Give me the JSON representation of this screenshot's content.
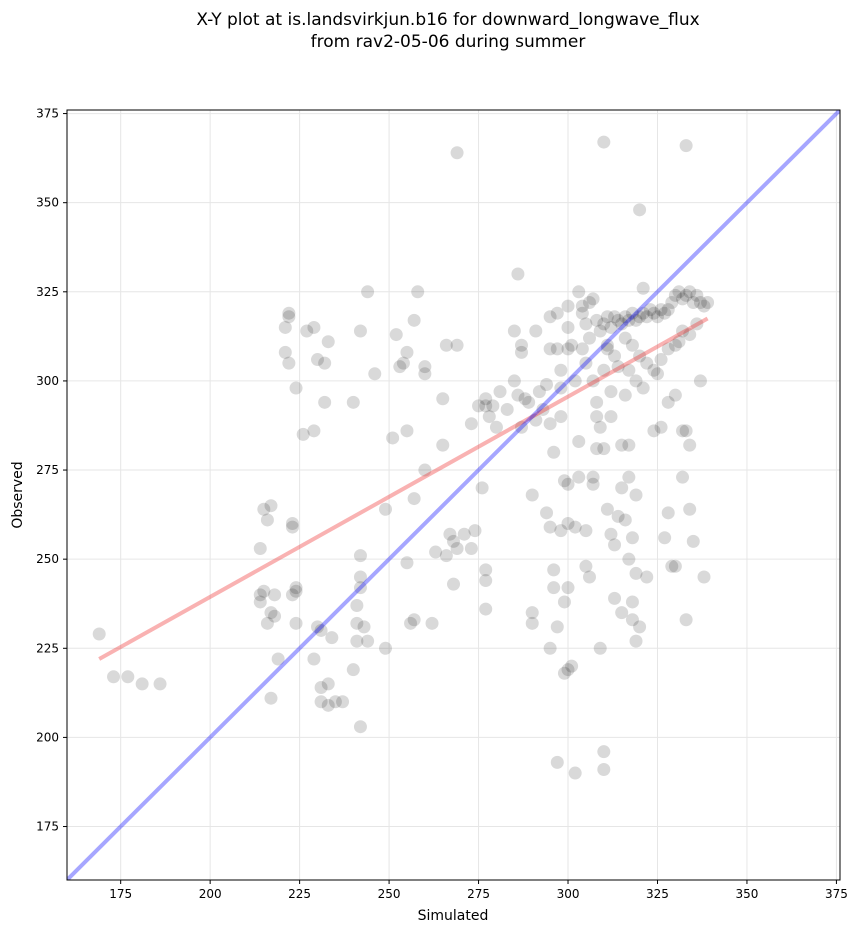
{
  "chart_data": {
    "type": "scatter",
    "title": [
      "X-Y plot at is.landsvirkjun.b16 for downward_longwave_flux",
      "from rav2-05-06 during summer"
    ],
    "xlabel": "Simulated",
    "ylabel": "Observed",
    "xlim": [
      160,
      376
    ],
    "ylim": [
      160,
      376
    ],
    "xticks": [
      175,
      200,
      225,
      250,
      275,
      300,
      325,
      350,
      375
    ],
    "yticks": [
      175,
      200,
      225,
      250,
      275,
      300,
      325,
      350,
      375
    ],
    "grid": true,
    "color": "#000000",
    "alpha": 0.15,
    "identity_line": {
      "color": "#0000ff",
      "x": [
        160,
        376
      ],
      "y": [
        160,
        376
      ]
    },
    "fit_line": {
      "color": "#ee2222",
      "x": [
        169,
        339
      ],
      "y": [
        222,
        317.5
      ]
    },
    "x": [
      169,
      173,
      177,
      181,
      186,
      214,
      214,
      214,
      215,
      215,
      216,
      216,
      217,
      217,
      217,
      218,
      218,
      219,
      221,
      221,
      222,
      222,
      222,
      223,
      223,
      223,
      224,
      224,
      224,
      224,
      226,
      227,
      229,
      229,
      229,
      230,
      230,
      231,
      231,
      231,
      232,
      232,
      233,
      233,
      233,
      234,
      235,
      237,
      240,
      240,
      241,
      241,
      241,
      242,
      242,
      242,
      242,
      242,
      243,
      244,
      244,
      246,
      249,
      249,
      251,
      252,
      253,
      254,
      255,
      255,
      255,
      256,
      257,
      257,
      257,
      258,
      260,
      260,
      260,
      262,
      263,
      265,
      265,
      266,
      266,
      267,
      268,
      268,
      269,
      269,
      269,
      271,
      273,
      273,
      274,
      275,
      276,
      277,
      277,
      277,
      277,
      277,
      278,
      279,
      280,
      281,
      283,
      285,
      285,
      286,
      286,
      287,
      287,
      287,
      288,
      289,
      290,
      290,
      290,
      291,
      291,
      292,
      293,
      294,
      294,
      295,
      295,
      295,
      295,
      295,
      296,
      296,
      296,
      297,
      297,
      297,
      297,
      298,
      298,
      298,
      298,
      299,
      299,
      299,
      300,
      300,
      300,
      300,
      300,
      300,
      300,
      301,
      301,
      302,
      302,
      302,
      303,
      303,
      303,
      304,
      304,
      304,
      305,
      305,
      305,
      305,
      306,
      306,
      306,
      307,
      307,
      307,
      307,
      308,
      308,
      308,
      309,
      309,
      309,
      310,
      310,
      310,
      310,
      310,
      311,
      311,
      312,
      312,
      312,
      313,
      313,
      314,
      314,
      315,
      315,
      315,
      316,
      316,
      317,
      317,
      317,
      318,
      318,
      318,
      319,
      319,
      319,
      320,
      320,
      321,
      322,
      324,
      325,
      326,
      327,
      328,
      328,
      329,
      330,
      330,
      331,
      332,
      332,
      333,
      333,
      333,
      334,
      334,
      335,
      336,
      337,
      338,
      308,
      310,
      311,
      312,
      313,
      314,
      315,
      316,
      317,
      318,
      319,
      320,
      321,
      322,
      323,
      324,
      325,
      326,
      327,
      328,
      329,
      330,
      331,
      332,
      333,
      334,
      335,
      336,
      337,
      338,
      339,
      316,
      318,
      320,
      322,
      324,
      326,
      328,
      330,
      332,
      334,
      319,
      321,
      317,
      313,
      311
    ],
    "values": [
      229,
      217,
      217,
      215,
      215,
      253,
      240,
      238,
      264,
      241,
      232,
      261,
      235,
      265,
      211,
      240,
      234,
      222,
      315,
      308,
      305,
      318,
      319,
      260,
      259,
      240,
      242,
      241,
      232,
      298,
      285,
      314,
      315,
      286,
      222,
      306,
      231,
      230,
      214,
      210,
      294,
      305,
      311,
      215,
      209,
      228,
      210,
      210,
      294,
      219,
      232,
      237,
      227,
      314,
      242,
      245,
      203,
      251,
      231,
      325,
      227,
      302,
      225,
      264,
      284,
      313,
      304,
      305,
      308,
      286,
      249,
      232,
      267,
      317,
      233,
      325,
      304,
      302,
      275,
      232,
      252,
      295,
      282,
      310,
      251,
      257,
      255,
      243,
      364,
      253,
      310,
      257,
      288,
      253,
      258,
      293,
      270,
      295,
      293,
      247,
      244,
      236,
      290,
      293,
      287,
      297,
      292,
      314,
      300,
      330,
      296,
      310,
      287,
      308,
      295,
      294,
      268,
      232,
      235,
      314,
      289,
      297,
      292,
      299,
      263,
      318,
      309,
      288,
      259,
      225,
      280,
      247,
      242,
      319,
      309,
      231,
      193,
      290,
      258,
      303,
      298,
      272,
      238,
      218,
      321,
      315,
      309,
      260,
      271,
      242,
      219,
      220,
      310,
      300,
      190,
      259,
      325,
      283,
      273,
      309,
      321,
      319,
      316,
      305,
      248,
      258,
      322,
      312,
      245,
      323,
      273,
      271,
      300,
      290,
      294,
      281,
      314,
      287,
      225,
      367,
      196,
      191,
      281,
      303,
      264,
      309,
      290,
      257,
      297,
      254,
      239,
      262,
      304,
      282,
      270,
      235,
      296,
      261,
      273,
      282,
      250,
      256,
      233,
      238,
      268,
      246,
      227,
      231,
      348,
      326,
      245,
      286,
      302,
      287,
      256,
      263,
      294,
      248,
      248,
      296,
      311,
      286,
      273,
      366,
      286,
      233,
      282,
      264,
      255,
      316,
      300,
      245,
      317,
      316,
      318,
      315,
      318,
      317,
      316,
      318,
      317,
      319,
      317,
      318,
      319,
      318,
      320,
      319,
      318,
      320,
      319,
      320,
      322,
      324,
      325,
      323,
      324,
      325,
      322,
      324,
      322,
      321,
      322,
      312,
      310,
      307,
      305,
      303,
      306,
      309,
      310,
      314,
      313,
      300,
      298,
      303,
      307,
      310
    ]
  }
}
